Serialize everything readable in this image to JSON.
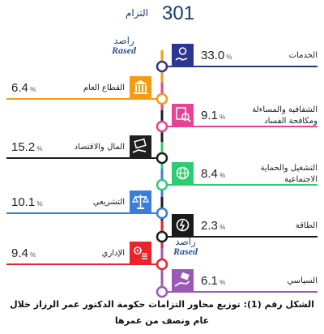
{
  "header": {
    "total": "301",
    "total_label": "التزام"
  },
  "watermark": {
    "ar": "راصد",
    "en": "Rased"
  },
  "pct_sign": "%",
  "chart_data": {
    "type": "bar",
    "unit": "%",
    "categories": [
      "الخدمات",
      "القطاع العام",
      "الشفافية والمساءلة ومكافحة الفساد",
      "المال والاقتصاد",
      "التشغيل والحماية الاجتماعية",
      "التشريعي",
      "الطاقة",
      "الإداري",
      "السياسي"
    ],
    "values": [
      33.0,
      6.4,
      9.1,
      15.2,
      8.4,
      10.1,
      2.3,
      9.4,
      6.1
    ]
  },
  "items": [
    {
      "label": "الخدمات",
      "value": "33.0",
      "side": "right",
      "color": "#2c3590",
      "icon": "hand-coin-icon"
    },
    {
      "label": "القطاع العام",
      "value": "6.4",
      "side": "left",
      "color": "#f39c12",
      "icon": "government-building-icon"
    },
    {
      "label": "الشفافية والمساءلة\nومكافحة الفساد",
      "value": "9.1",
      "side": "right",
      "color": "#e84393",
      "icon": "magnifier-document-icon"
    },
    {
      "label": "المال والاقتصاد",
      "value": "15.2",
      "side": "left",
      "color": "#1f1f1f",
      "icon": "money-hand-icon"
    },
    {
      "label": "التشغيل والحماية\nالاجتماعية",
      "value": "8.4",
      "side": "right",
      "color": "#2ecc71",
      "icon": "globe-network-icon"
    },
    {
      "label": "التشريعي",
      "value": "10.1",
      "side": "left",
      "color": "#3b7dd8",
      "icon": "scales-icon"
    },
    {
      "label": "الطاقة",
      "value": "2.3",
      "side": "right",
      "color": "#1a1a1a",
      "icon": "power-cycle-icon"
    },
    {
      "label": "الإداري",
      "value": "9.4",
      "side": "left",
      "color": "#e8232a",
      "icon": "gears-list-icon"
    },
    {
      "label": "السياسي",
      "value": "6.1",
      "side": "right",
      "color": "#9b59b6",
      "icon": "hand-ballot-icon"
    }
  ],
  "caption": {
    "line1": "الشكل رقم (1): توزيع محاور التزامات حكومة الدكتور عمر الرزاز خلال",
    "line2": "عام ونصف من عمرها"
  }
}
